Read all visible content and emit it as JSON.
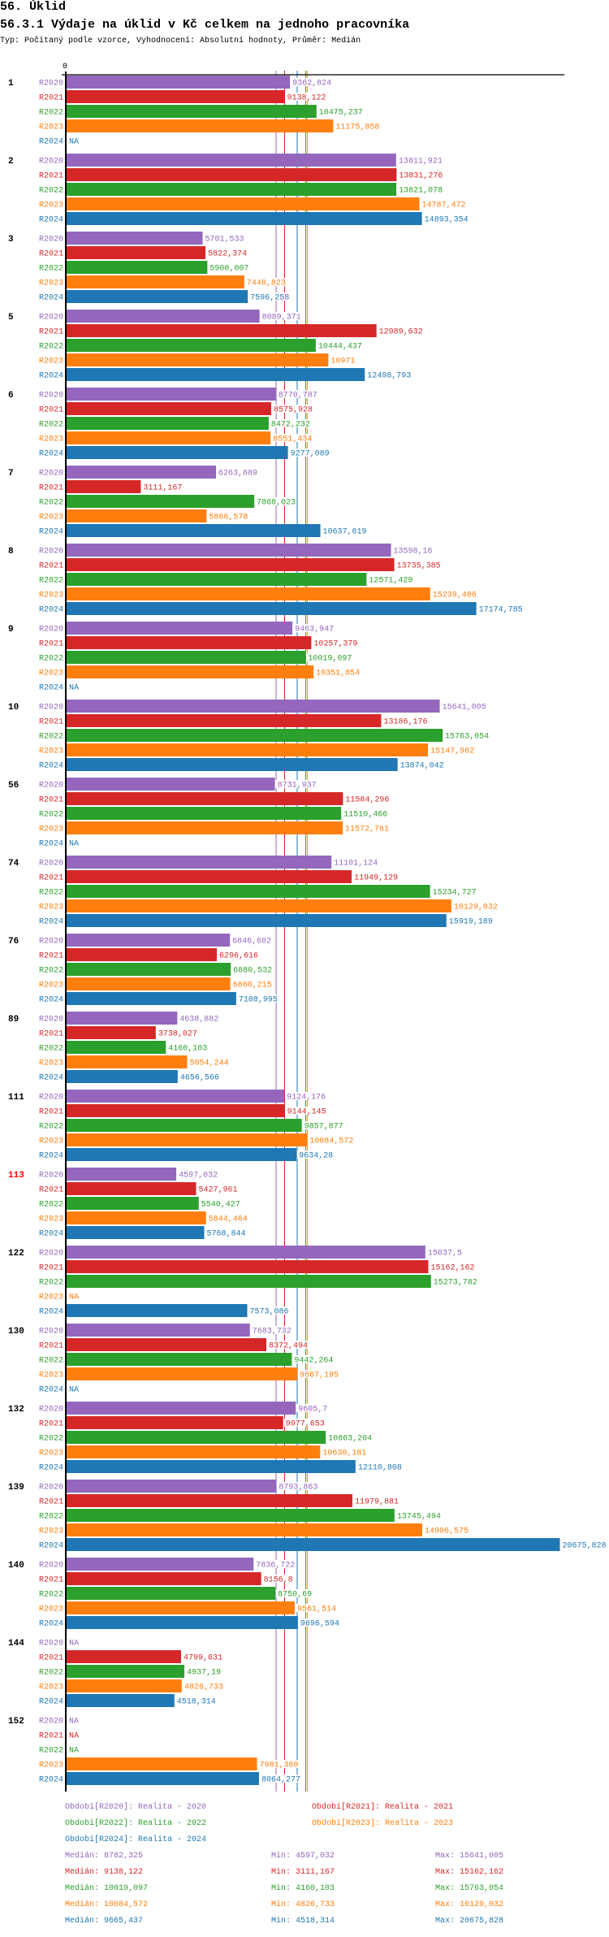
{
  "header": {
    "section": "56. Úklid",
    "title": "56.3.1 Výdaje na úklid v Kč celkem na jednoho pracovníka",
    "subtitle": "Typ: Počítaný podle vzorce, Vyhodnocení: Absolutní hodnoty, Průměr: Medián"
  },
  "chart_data": {
    "type": "bar",
    "orientation": "horizontal",
    "x_tick_label": "0",
    "xlim": [
      0,
      20675.828
    ],
    "grid": false,
    "na_label": "NA",
    "series_keys": [
      "R2020",
      "R2021",
      "R2022",
      "R2023",
      "R2024"
    ],
    "colors": {
      "R2020": "#9467bd",
      "R2021": "#d62728",
      "R2022": "#2ca02c",
      "R2023": "#ff7f0e",
      "R2024": "#1f77b4"
    },
    "highlight_color": "#ff0000",
    "groups": [
      {
        "label": "1",
        "values": [
          "9362,824",
          "9138,122",
          "10475,237",
          "11175,858",
          null
        ]
      },
      {
        "label": "2",
        "values": [
          "13811,921",
          "13831,276",
          "13821,078",
          "14787,472",
          "14893,354"
        ]
      },
      {
        "label": "3",
        "values": [
          "5701,533",
          "5822,374",
          "5900,007",
          "7448,823",
          "7596,258"
        ]
      },
      {
        "label": "5",
        "values": [
          "8089,371",
          "12989,632",
          "10444,437",
          "10971",
          "12498,793"
        ]
      },
      {
        "label": "6",
        "values": [
          "8770,787",
          "8575,928",
          "8472,232",
          "8551,434",
          "9277,089"
        ]
      },
      {
        "label": "7",
        "values": [
          "6263,889",
          "3111,167",
          "7868,023",
          "5866,578",
          "10637,619"
        ]
      },
      {
        "label": "8",
        "values": [
          "13598,16",
          "13735,385",
          "12571,429",
          "15239,486",
          "17174,785"
        ]
      },
      {
        "label": "9",
        "values": [
          "9463,947",
          "10257,379",
          "10019,097",
          "10351,854",
          null
        ]
      },
      {
        "label": "10",
        "values": [
          "15641,005",
          "13186,176",
          "15763,054",
          "15147,962",
          "13874,042"
        ]
      },
      {
        "label": "56",
        "values": [
          "8731,937",
          "11584,296",
          "11510,466",
          "11572,761",
          null
        ]
      },
      {
        "label": "74",
        "values": [
          "11101,124",
          "11949,129",
          "15234,727",
          "16129,032",
          "15919,189"
        ]
      },
      {
        "label": "76",
        "values": [
          "6846,602",
          "6296,616",
          "6880,532",
          "6860,215",
          "7108,995"
        ]
      },
      {
        "label": "89",
        "values": [
          "4638,882",
          "3738,027",
          "4160,103",
          "5054,244",
          "4656,566"
        ]
      },
      {
        "label": "111",
        "values": [
          "9124,176",
          "9144,145",
          "9857,877",
          "10084,572",
          "9634,28"
        ]
      },
      {
        "label": "113",
        "highlight": true,
        "values": [
          "4597,032",
          "5427,961",
          "5540,427",
          "5844,464",
          "5768,844"
        ]
      },
      {
        "label": "122",
        "values": [
          "15037,5",
          "15162,162",
          "15273,782",
          null,
          "7573,086"
        ]
      },
      {
        "label": "130",
        "values": [
          "7683,732",
          "8372,494",
          "9442,264",
          "9667,105",
          null
        ]
      },
      {
        "label": "132",
        "values": [
          "9605,7",
          "9077,653",
          "10863,204",
          "10630,181",
          "12110,808"
        ]
      },
      {
        "label": "139",
        "values": [
          "8793,863",
          "11979,881",
          "13745,494",
          "14906,575",
          "20675,828"
        ]
      },
      {
        "label": "140",
        "values": [
          "7836,722",
          "8156,8",
          "8750,69",
          "9561,514",
          "9696,594"
        ]
      },
      {
        "label": "144",
        "values": [
          null,
          "4799,031",
          "4937,19",
          "4826,733",
          "4518,314"
        ]
      },
      {
        "label": "152",
        "values": [
          null,
          null,
          null,
          "7981,369",
          "8064,277"
        ]
      }
    ],
    "median_lines": {
      "R2020": 8782.325,
      "R2021": 9138.122,
      "R2022": 10019.097,
      "R2023": 10084.572,
      "R2024": 9665.437
    }
  },
  "legend": {
    "periods": [
      {
        "key": "R2020",
        "text": "Období[R2020]: Realita - 2020"
      },
      {
        "key": "R2021",
        "text": "Období[R2021]: Realita - 2021"
      },
      {
        "key": "R2022",
        "text": "Období[R2022]: Realita - 2022"
      },
      {
        "key": "R2023",
        "text": "Období[R2023]: Realita - 2023"
      },
      {
        "key": "R2024",
        "text": "Období[R2024]: Realita - 2024"
      }
    ],
    "stats": [
      {
        "key": "R2020",
        "median": "Medián: 8782,325",
        "min": "Min: 4597,032",
        "max": "Max: 15641,005"
      },
      {
        "key": "R2021",
        "median": "Medián: 9138,122",
        "min": "Min: 3111,167",
        "max": "Max: 15162,162"
      },
      {
        "key": "R2022",
        "median": "Medián: 10019,097",
        "min": "Min: 4160,103",
        "max": "Max: 15763,054"
      },
      {
        "key": "R2023",
        "median": "Medián: 10084,572",
        "min": "Min: 4826,733",
        "max": "Max: 16129,032"
      },
      {
        "key": "R2024",
        "median": "Medián: 9665,437",
        "min": "Min: 4518,314",
        "max": "Max: 20675,828"
      }
    ]
  }
}
